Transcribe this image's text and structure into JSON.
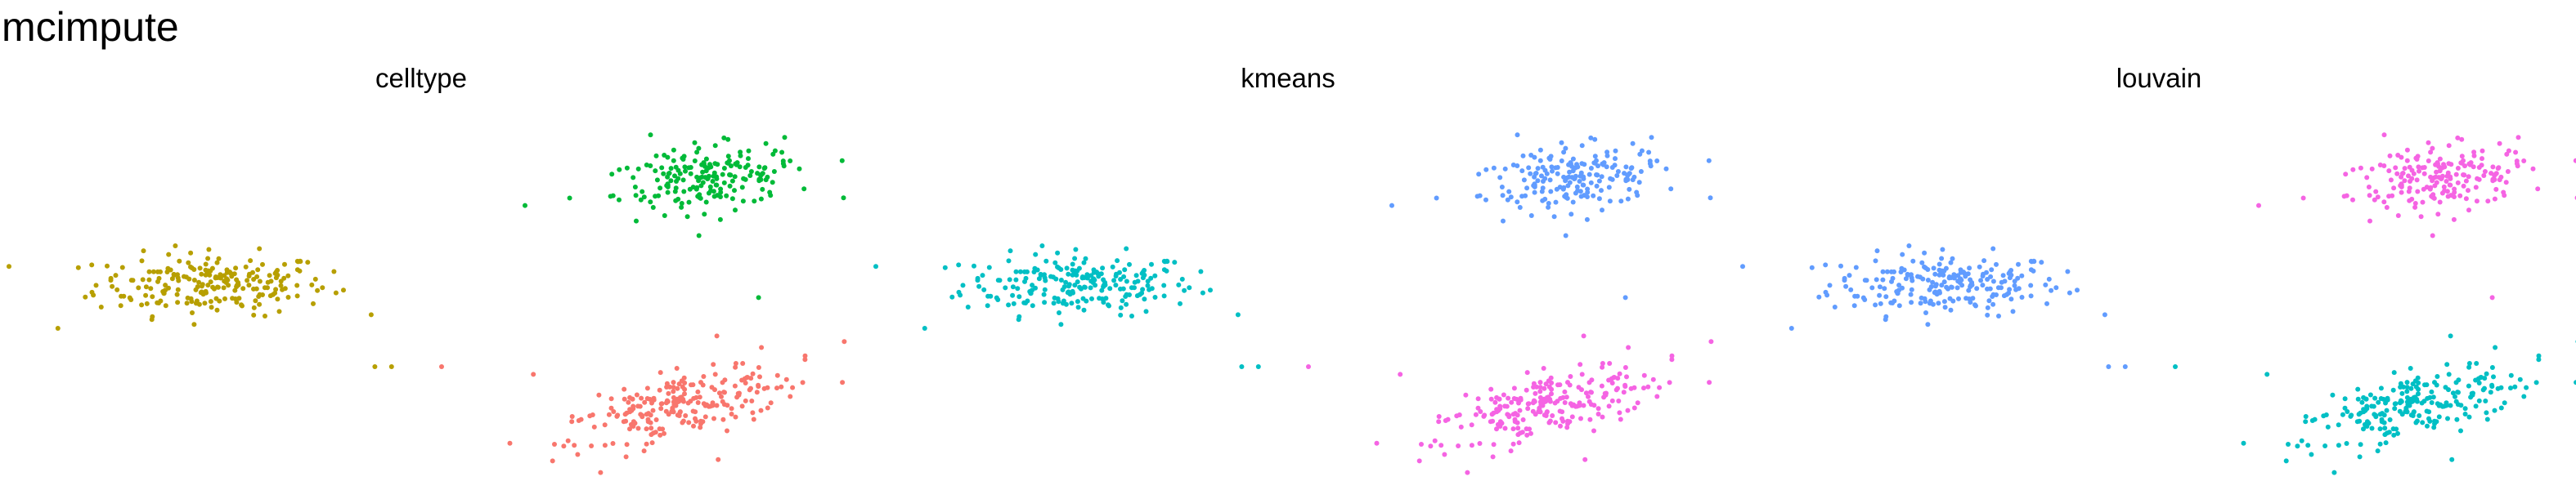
{
  "figure_title": "mcimpute",
  "colors": {
    "olive": "#B79F00",
    "green": "#00BA38",
    "salmon": "#F8766D",
    "cyan": "#00BFC4",
    "blue": "#619CFF",
    "magenta": "#F564E3"
  },
  "chart_data": [
    {
      "type": "scatter",
      "title": "celltype",
      "xlabel": "",
      "ylabel": "",
      "grid": false,
      "legend": "none",
      "xlim": [
        0,
        1
      ],
      "ylim": [
        0,
        1
      ],
      "clusters": [
        {
          "center": [
            0.225,
            0.515
          ],
          "spread": [
            0.07,
            0.04
          ],
          "count": 220,
          "color": "#B79F00",
          "rotation": 0
        },
        {
          "center": [
            0.82,
            0.79
          ],
          "spread": [
            0.06,
            0.04
          ],
          "count": 190,
          "color": "#00BA38",
          "rotation": 0.35
        },
        {
          "center": [
            0.79,
            0.2
          ],
          "spread": [
            0.08,
            0.035
          ],
          "count": 230,
          "color": "#F8766D",
          "rotation": 0.6
        }
      ],
      "outliers": [
        {
          "x": 0.04,
          "y": 0.4,
          "color": "#B79F00"
        },
        {
          "x": 0.42,
          "y": 0.3,
          "color": "#B79F00"
        },
        {
          "x": 0.44,
          "y": 0.3,
          "color": "#B79F00"
        },
        {
          "x": 0.5,
          "y": 0.3,
          "color": "#F8766D"
        },
        {
          "x": 0.61,
          "y": 0.28,
          "color": "#F8766D"
        },
        {
          "x": 0.6,
          "y": 0.72,
          "color": "#00BA38"
        },
        {
          "x": 0.88,
          "y": 0.48,
          "color": "#00BA38"
        },
        {
          "x": 0.83,
          "y": 0.38,
          "color": "#F8766D"
        }
      ]
    },
    {
      "type": "scatter",
      "title": "kmeans",
      "xlabel": "",
      "ylabel": "",
      "grid": false,
      "legend": "none",
      "xlim": [
        0,
        1
      ],
      "ylim": [
        0,
        1
      ],
      "clusters": [
        {
          "center": [
            0.225,
            0.515
          ],
          "spread": [
            0.07,
            0.04
          ],
          "count": 220,
          "color": "#00BFC4",
          "rotation": 0
        },
        {
          "center": [
            0.82,
            0.79
          ],
          "spread": [
            0.06,
            0.04
          ],
          "count": 190,
          "color": "#619CFF",
          "rotation": 0.35
        },
        {
          "center": [
            0.79,
            0.2
          ],
          "spread": [
            0.08,
            0.035
          ],
          "count": 230,
          "color": "#F564E3",
          "rotation": 0.6
        }
      ],
      "outliers": [
        {
          "x": 0.04,
          "y": 0.4,
          "color": "#00BFC4"
        },
        {
          "x": 0.42,
          "y": 0.3,
          "color": "#00BFC4"
        },
        {
          "x": 0.44,
          "y": 0.3,
          "color": "#00BFC4"
        },
        {
          "x": 0.5,
          "y": 0.3,
          "color": "#F564E3"
        },
        {
          "x": 0.61,
          "y": 0.28,
          "color": "#F564E3"
        },
        {
          "x": 0.6,
          "y": 0.72,
          "color": "#619CFF"
        },
        {
          "x": 0.88,
          "y": 0.48,
          "color": "#619CFF"
        },
        {
          "x": 0.83,
          "y": 0.38,
          "color": "#F564E3"
        }
      ]
    },
    {
      "type": "scatter",
      "title": "louvain",
      "xlabel": "",
      "ylabel": "",
      "grid": false,
      "legend": "none",
      "xlim": [
        0,
        1
      ],
      "ylim": [
        0,
        1
      ],
      "clusters": [
        {
          "center": [
            0.225,
            0.515
          ],
          "spread": [
            0.07,
            0.04
          ],
          "count": 220,
          "color": "#619CFF",
          "rotation": 0
        },
        {
          "center": [
            0.82,
            0.79
          ],
          "spread": [
            0.06,
            0.04
          ],
          "count": 190,
          "color": "#F564E3",
          "rotation": 0.35
        },
        {
          "center": [
            0.79,
            0.2
          ],
          "spread": [
            0.08,
            0.035
          ],
          "count": 230,
          "color": "#00BFC4",
          "rotation": 0.6
        }
      ],
      "outliers": [
        {
          "x": 0.04,
          "y": 0.4,
          "color": "#619CFF"
        },
        {
          "x": 0.42,
          "y": 0.3,
          "color": "#619CFF"
        },
        {
          "x": 0.44,
          "y": 0.3,
          "color": "#619CFF"
        },
        {
          "x": 0.5,
          "y": 0.3,
          "color": "#00BFC4"
        },
        {
          "x": 0.61,
          "y": 0.28,
          "color": "#00BFC4"
        },
        {
          "x": 0.6,
          "y": 0.72,
          "color": "#F564E3"
        },
        {
          "x": 0.88,
          "y": 0.48,
          "color": "#F564E3"
        },
        {
          "x": 0.83,
          "y": 0.38,
          "color": "#00BFC4"
        }
      ]
    }
  ]
}
